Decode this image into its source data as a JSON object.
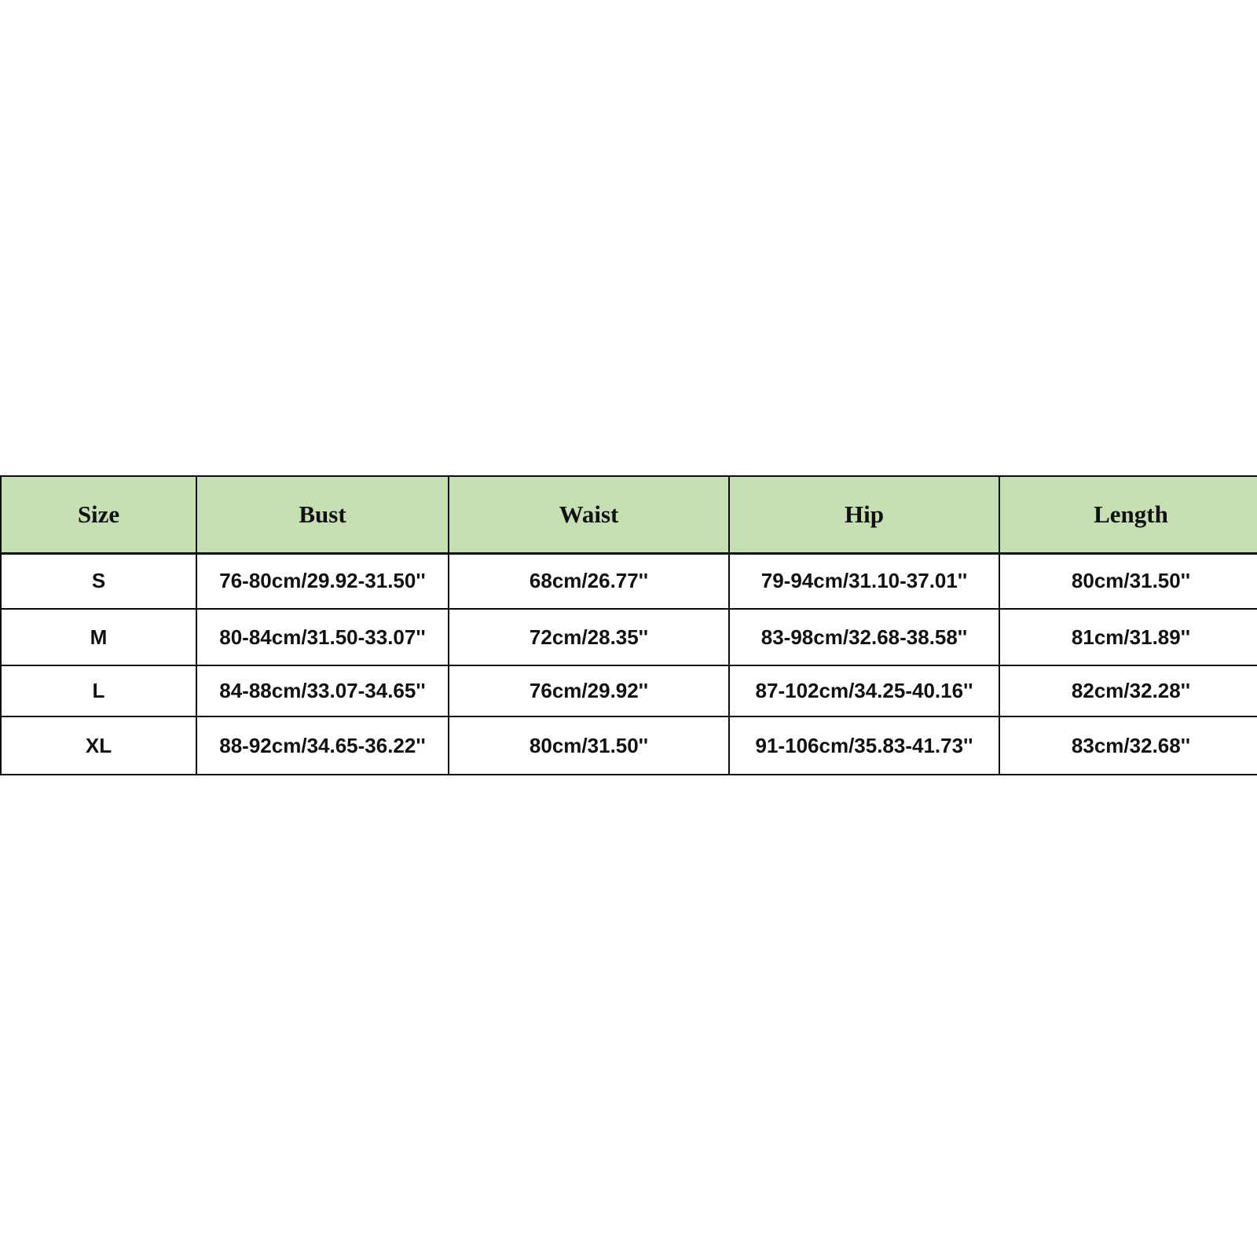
{
  "chart_data": {
    "type": "table",
    "title": "Garment size chart",
    "columns": [
      "Size",
      "Bust",
      "Waist",
      "Hip",
      "Length"
    ],
    "rows": [
      [
        "S",
        "76-80cm/29.92-31.50''",
        "68cm/26.77''",
        "79-94cm/31.10-37.01''",
        "80cm/31.50''"
      ],
      [
        "M",
        "80-84cm/31.50-33.07''",
        "72cm/28.35''",
        "83-98cm/32.68-38.58''",
        "81cm/31.89''"
      ],
      [
        "L",
        "84-88cm/33.07-34.65''",
        "76cm/29.92''",
        "87-102cm/34.25-40.16''",
        "82cm/32.28''"
      ],
      [
        "XL",
        "88-92cm/34.65-36.22''",
        "80cm/31.50''",
        "91-106cm/35.83-41.73''",
        "83cm/32.68''"
      ]
    ],
    "legend_position": "none",
    "grid": true
  },
  "table": {
    "headers": [
      "Size",
      "Bust",
      "Waist",
      "Hip",
      "Length"
    ],
    "rows": [
      {
        "size": "S",
        "bust": "76-80cm/29.92-31.50''",
        "waist": "68cm/26.77''",
        "hip": "79-94cm/31.10-37.01''",
        "length": "80cm/31.50''"
      },
      {
        "size": "M",
        "bust": "80-84cm/31.50-33.07''",
        "waist": "72cm/28.35''",
        "hip": "83-98cm/32.68-38.58''",
        "length": "81cm/31.89''"
      },
      {
        "size": "L",
        "bust": "84-88cm/33.07-34.65''",
        "waist": "76cm/29.92''",
        "hip": "87-102cm/34.25-40.16''",
        "length": "82cm/32.28''"
      },
      {
        "size": "XL",
        "bust": "88-92cm/34.65-36.22''",
        "waist": "80cm/31.50''",
        "hip": "91-106cm/35.83-41.73''",
        "length": "83cm/32.68''"
      }
    ],
    "colors": {
      "header_bg": "#c6e0b4",
      "border": "#0d0d0d",
      "text": "#111111",
      "page_bg": "#ffffff"
    }
  }
}
